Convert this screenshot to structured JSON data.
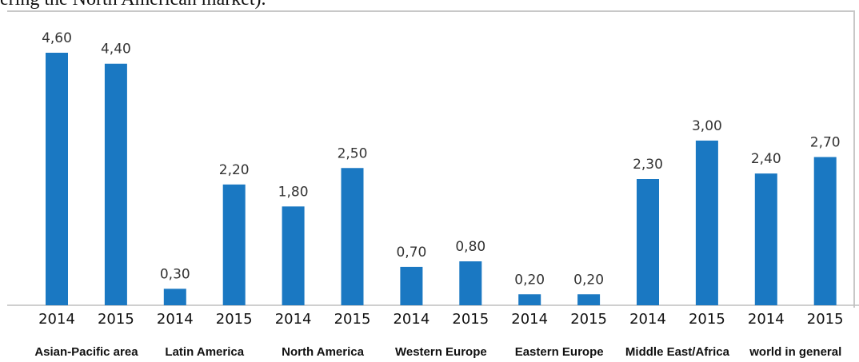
{
  "caption_fragment": "ering the North American market).",
  "chart_data": {
    "type": "bar",
    "categories": [
      "Asian-Pacific area 2014",
      "Asian-Pacific area 2015",
      "Latin America 2014",
      "Latin America 2015",
      "North America 2014",
      "North America 2015",
      "Western Europe 2014",
      "Western Europe 2015",
      "Eastern Europe 2014",
      "Eastern Europe 2015",
      "Middle East/Africa 2014",
      "Middle East/Africa 2015",
      "world in general 2014",
      "world in general 2015"
    ],
    "years": [
      "2014",
      "2015",
      "2014",
      "2015",
      "2014",
      "2015",
      "2014",
      "2015",
      "2014",
      "2015",
      "2014",
      "2015",
      "2014",
      "2015"
    ],
    "values": [
      4.6,
      4.4,
      0.3,
      2.2,
      1.8,
      2.5,
      0.7,
      0.8,
      0.2,
      0.2,
      2.3,
      3.0,
      2.4,
      2.7
    ],
    "value_labels": [
      "4,60",
      "4,40",
      "0,30",
      "2,20",
      "1,80",
      "2,50",
      "0,70",
      "0,80",
      "0,20",
      "0,20",
      "2,30",
      "3,00",
      "2,40",
      "2,70"
    ],
    "groups": [
      "Asian-Pacific area",
      "Latin America",
      "North America",
      "Western Europe",
      "Eastern Europe",
      "Middle East/Africa",
      "world in general"
    ],
    "title": "",
    "xlabel": "",
    "ylabel": "",
    "ylim": [
      0,
      5
    ],
    "grid": false,
    "legend": "none",
    "bar_color": "#1a78c2"
  }
}
